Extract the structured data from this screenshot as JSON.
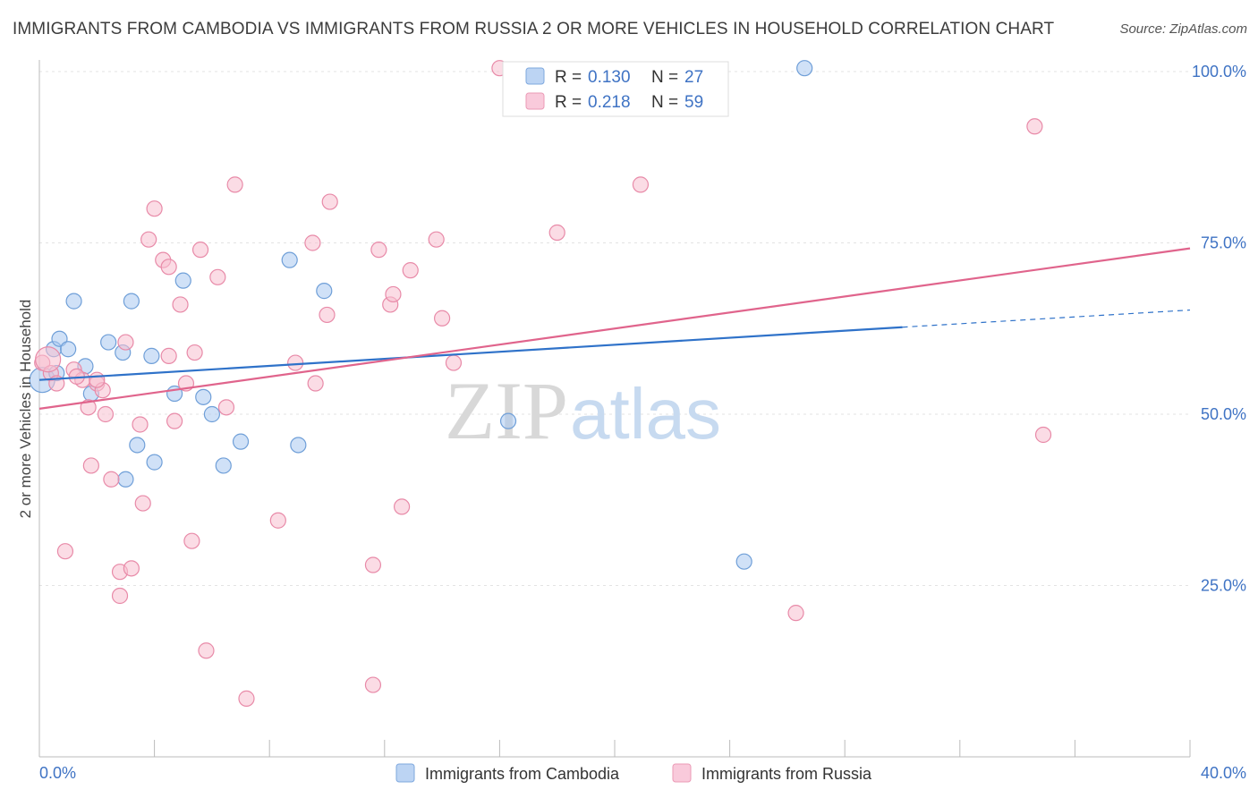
{
  "chart_data": {
    "type": "scatter",
    "title": "IMMIGRANTS FROM CAMBODIA VS IMMIGRANTS FROM RUSSIA 2 OR MORE VEHICLES IN HOUSEHOLD CORRELATION CHART",
    "source": "Source: ZipAtlas.com",
    "ylabel": "2 or more Vehicles in Household",
    "xlabel": "",
    "xlim": [
      0,
      40
    ],
    "ylim": [
      0,
      102
    ],
    "x_tick_labels": [
      "0.0%",
      "40.0%"
    ],
    "y_tick_labels": [
      {
        "value": 25,
        "label": "25.0%"
      },
      {
        "value": 50,
        "label": "50.0%"
      },
      {
        "value": 75,
        "label": "75.0%"
      },
      {
        "value": 100,
        "label": "100.0%"
      }
    ],
    "grid": true,
    "legend_position": "top-center",
    "watermark": "ZIPatlas",
    "series": [
      {
        "name": "Immigrants from Cambodia",
        "color": "#a9c8f0",
        "stroke": "#6f9fd8",
        "line_color": "#2f72c9",
        "r_label": "R =",
        "r_value": "0.130",
        "n_label": "N =",
        "n_value": "27",
        "trend": {
          "x0": 0,
          "y0": 55.0,
          "x1": 30,
          "y1": 62.7,
          "dash_to_x": 40,
          "dash_to_y": 65.2
        },
        "points": [
          [
            0.1,
            55.0
          ],
          [
            0.5,
            59.5
          ],
          [
            0.7,
            61.0
          ],
          [
            1.0,
            59.5
          ],
          [
            1.2,
            66.5
          ],
          [
            1.6,
            57.0
          ],
          [
            1.8,
            53.0
          ],
          [
            2.4,
            60.5
          ],
          [
            2.9,
            59.0
          ],
          [
            3.2,
            66.5
          ],
          [
            3.4,
            45.5
          ],
          [
            3.9,
            58.5
          ],
          [
            4.0,
            43.0
          ],
          [
            4.7,
            53.0
          ],
          [
            5.0,
            69.5
          ],
          [
            5.7,
            52.5
          ],
          [
            6.0,
            50.0
          ],
          [
            6.4,
            42.5
          ],
          [
            7.0,
            46.0
          ],
          [
            8.7,
            72.5
          ],
          [
            9.0,
            45.5
          ],
          [
            9.9,
            68.0
          ],
          [
            3.0,
            40.5
          ],
          [
            16.3,
            49.0
          ],
          [
            24.5,
            28.5
          ],
          [
            26.6,
            100.5
          ],
          [
            0.6,
            56.0
          ]
        ]
      },
      {
        "name": "Immigrants from Russia",
        "color": "#f7bfd0",
        "stroke": "#e88aa8",
        "line_color": "#e0648c",
        "r_label": "R =",
        "r_value": "0.218",
        "n_label": "N =",
        "n_value": "59",
        "trend": {
          "x0": 0,
          "y0": 50.8,
          "x1": 40,
          "y1": 74.2
        },
        "points": [
          [
            0.1,
            57.5
          ],
          [
            0.4,
            56.0
          ],
          [
            0.6,
            54.5
          ],
          [
            0.9,
            30.0
          ],
          [
            1.2,
            56.5
          ],
          [
            1.5,
            55.0
          ],
          [
            1.7,
            51.0
          ],
          [
            1.8,
            42.5
          ],
          [
            2.0,
            54.5
          ],
          [
            2.2,
            53.5
          ],
          [
            2.3,
            50.0
          ],
          [
            2.5,
            40.5
          ],
          [
            2.8,
            27.0
          ],
          [
            2.8,
            23.5
          ],
          [
            3.0,
            60.5
          ],
          [
            3.2,
            27.5
          ],
          [
            3.5,
            48.5
          ],
          [
            3.6,
            37.0
          ],
          [
            3.8,
            75.5
          ],
          [
            4.0,
            80.0
          ],
          [
            4.3,
            72.5
          ],
          [
            4.5,
            58.5
          ],
          [
            4.5,
            71.5
          ],
          [
            4.7,
            49.0
          ],
          [
            4.9,
            66.0
          ],
          [
            5.1,
            54.5
          ],
          [
            5.3,
            31.5
          ],
          [
            5.4,
            59.0
          ],
          [
            5.6,
            74.0
          ],
          [
            5.8,
            15.5
          ],
          [
            6.2,
            70.0
          ],
          [
            6.5,
            51.0
          ],
          [
            6.8,
            83.5
          ],
          [
            7.2,
            8.5
          ],
          [
            8.3,
            34.5
          ],
          [
            8.9,
            57.5
          ],
          [
            9.5,
            75.0
          ],
          [
            9.6,
            54.5
          ],
          [
            10.0,
            64.5
          ],
          [
            10.1,
            81.0
          ],
          [
            11.6,
            10.5
          ],
          [
            11.6,
            28.0
          ],
          [
            11.8,
            74.0
          ],
          [
            12.2,
            66.0
          ],
          [
            12.3,
            67.5
          ],
          [
            12.6,
            36.5
          ],
          [
            12.9,
            71.0
          ],
          [
            13.8,
            75.5
          ],
          [
            14.0,
            64.0
          ],
          [
            14.4,
            57.5
          ],
          [
            16.0,
            100.5
          ],
          [
            18.0,
            76.5
          ],
          [
            20.9,
            83.5
          ],
          [
            26.3,
            21.0
          ],
          [
            34.6,
            92.0
          ],
          [
            34.9,
            47.0
          ],
          [
            0.3,
            58.0
          ],
          [
            1.3,
            55.5
          ],
          [
            2.0,
            55.0
          ]
        ]
      }
    ]
  }
}
